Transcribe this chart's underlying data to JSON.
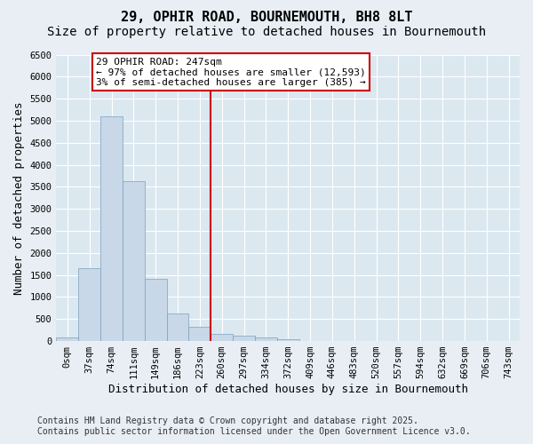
{
  "title": "29, OPHIR ROAD, BOURNEMOUTH, BH8 8LT",
  "subtitle": "Size of property relative to detached houses in Bournemouth",
  "xlabel": "Distribution of detached houses by size in Bournemouth",
  "ylabel": "Number of detached properties",
  "bar_values": [
    75,
    1650,
    5100,
    3620,
    1420,
    620,
    320,
    155,
    120,
    75,
    50,
    0,
    0,
    0,
    0,
    0,
    0,
    0,
    0,
    0,
    0
  ],
  "bar_labels": [
    "0sqm",
    "37sqm",
    "74sqm",
    "111sqm",
    "149sqm",
    "186sqm",
    "223sqm",
    "260sqm",
    "297sqm",
    "334sqm",
    "372sqm",
    "409sqm",
    "446sqm",
    "483sqm",
    "520sqm",
    "557sqm",
    "594sqm",
    "632sqm",
    "669sqm",
    "706sqm",
    "743sqm"
  ],
  "bar_color": "#c8d8e8",
  "bar_edge_color": "#7aa0be",
  "bar_width": 1.0,
  "vline_x_idx": 6.5,
  "vline_color": "#cc0000",
  "annotation_title": "29 OPHIR ROAD: 247sqm",
  "annotation_line1": "← 97% of detached houses are smaller (12,593)",
  "annotation_line2": "3% of semi-detached houses are larger (385) →",
  "annotation_box_color": "#cc0000",
  "ylim": [
    0,
    6500
  ],
  "yticks": [
    0,
    500,
    1000,
    1500,
    2000,
    2500,
    3000,
    3500,
    4000,
    4500,
    5000,
    5500,
    6000,
    6500
  ],
  "bg_color": "#e8eef4",
  "plot_bg_color": "#dce8f0",
  "footer_line1": "Contains HM Land Registry data © Crown copyright and database right 2025.",
  "footer_line2": "Contains public sector information licensed under the Open Government Licence v3.0.",
  "title_fontsize": 11,
  "subtitle_fontsize": 10,
  "axis_label_fontsize": 9,
  "tick_fontsize": 7.5,
  "annotation_fontsize": 8,
  "footer_fontsize": 7
}
